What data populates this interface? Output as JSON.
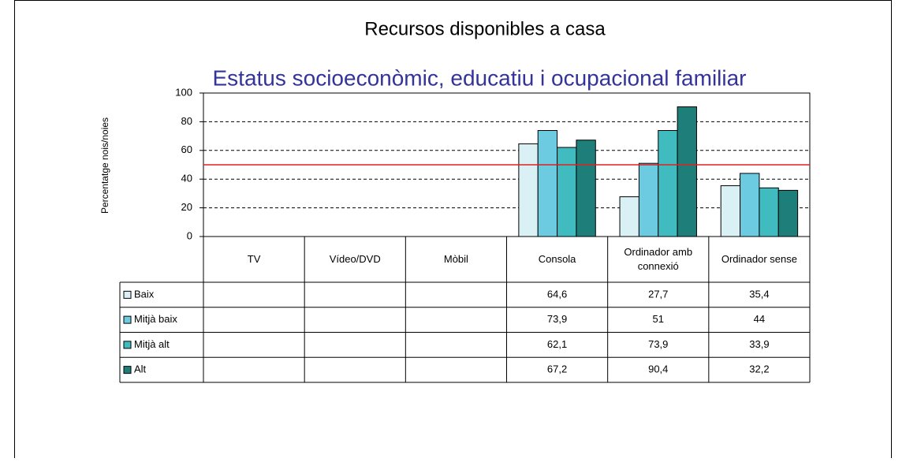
{
  "chart_data": {
    "type": "bar",
    "title": "Recursos disponibles a casa",
    "subtitle": "Estatus socioeconòmic, educatiu i ocupacional familiar",
    "y_label": "Percentatge  nois/noies",
    "categories": [
      "TV",
      "Vídeo/DVD",
      "Mòbil",
      "Consola",
      "Ordinador amb connexió",
      "Ordinador sense"
    ],
    "series": [
      {
        "name": "Baix",
        "color": "#d9f0f5",
        "values": [
          null,
          null,
          null,
          64.6,
          27.7,
          35.4
        ],
        "value_labels": [
          null,
          null,
          null,
          "64,6",
          "27,7",
          "35,4"
        ]
      },
      {
        "name": "Mitjà baix",
        "color": "#6ccbe0",
        "values": [
          null,
          null,
          null,
          73.9,
          51,
          44
        ],
        "value_labels": [
          null,
          null,
          null,
          "73,9",
          "51",
          "44"
        ]
      },
      {
        "name": "Mitjà alt",
        "color": "#40bcc0",
        "values": [
          null,
          null,
          null,
          62.1,
          73.9,
          33.9
        ],
        "value_labels": [
          null,
          null,
          null,
          "62,1",
          "73,9",
          "33,9"
        ]
      },
      {
        "name": "Alt",
        "color": "#1e7f7a",
        "values": [
          null,
          null,
          null,
          67.2,
          90.4,
          32.2
        ],
        "value_labels": [
          null,
          null,
          null,
          "67,2",
          "90,4",
          "32,2"
        ]
      }
    ],
    "ylim": [
      0,
      100
    ],
    "yticks": [
      0,
      20,
      40,
      60,
      80,
      100
    ],
    "grid": true,
    "reference_line": {
      "value": 50,
      "color": "#e02020"
    }
  }
}
